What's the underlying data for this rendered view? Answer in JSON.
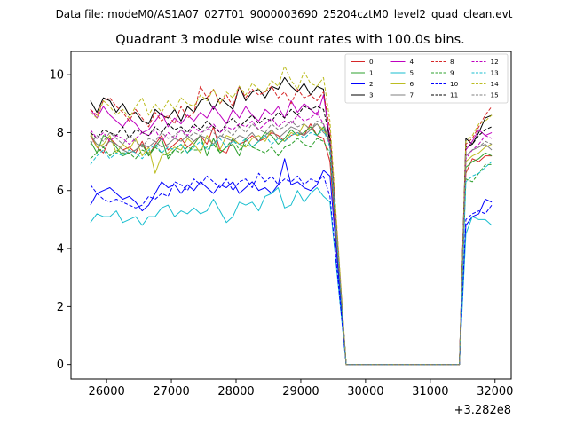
{
  "chart_data": {
    "type": "line",
    "suptitle": "Data file: modeM0/AS1A07_027T01_9000003690_25204cztM0_level2_quad_clean.evt",
    "title": "Quadrant 3 module wise count rates with 100.0s bins.",
    "xlabel": "",
    "ylabel": "",
    "x_offset_label": "+3.282e8",
    "xlim": [
      25450,
      32250
    ],
    "ylim": [
      -0.5,
      10.8
    ],
    "x_ticks": [
      26000,
      27000,
      28000,
      29000,
      30000,
      31000,
      32000
    ],
    "x_tick_labels": [
      "26000",
      "27000",
      "28000",
      "29000",
      "30000",
      "31000",
      "32000"
    ],
    "y_ticks": [
      0,
      2,
      4,
      6,
      8,
      10
    ],
    "y_tick_labels": [
      "0",
      "2",
      "4",
      "6",
      "8",
      "10"
    ],
    "grid": false,
    "legend_position": "upper right",
    "legend_columns": 4,
    "gap": {
      "x_start": 29700,
      "x_end": 31450,
      "value": 0
    },
    "segment1": {
      "x_start": 25750,
      "step": 100
    },
    "segment2": {
      "x": [
        31550,
        31650,
        31750,
        31850,
        31950
      ]
    },
    "series": [
      {
        "name": "0",
        "color": "#d62728",
        "dash": "solid",
        "seg1": [
          7.9,
          7.5,
          7.3,
          7.8,
          7.6,
          7.4,
          7.5,
          7.3,
          7.7,
          7.2,
          7.6,
          7.9,
          7.4,
          7.6,
          7.8,
          7.5,
          7.7,
          7.9,
          7.6,
          8.2,
          7.4,
          7.3,
          7.8,
          7.6,
          7.7,
          7.9,
          7.7,
          7.8,
          8.0,
          7.9,
          7.7,
          7.9,
          8.0,
          7.9,
          8.3,
          7.9,
          7.8,
          7.0
        ],
        "seg2": [
          6.6,
          7.1,
          7.0,
          7.2,
          7.2
        ]
      },
      {
        "name": "1",
        "color": "#2ca02c",
        "dash": "solid",
        "seg1": [
          7.7,
          7.3,
          7.9,
          7.8,
          7.5,
          7.2,
          7.3,
          7.4,
          7.6,
          7.2,
          7.5,
          7.8,
          7.1,
          7.4,
          7.6,
          7.3,
          7.6,
          7.9,
          7.2,
          7.8,
          7.3,
          7.5,
          7.6,
          7.2,
          7.8,
          7.5,
          7.7,
          8.0,
          7.9,
          7.6,
          7.8,
          8.1,
          7.9,
          8.0,
          8.2,
          7.9,
          8.2,
          7.6
        ],
        "seg2": [
          6.8,
          7.0,
          7.1,
          7.3,
          7.2
        ]
      },
      {
        "name": "2",
        "color": "#0000ff",
        "dash": "solid",
        "seg1": [
          5.5,
          5.9,
          6.0,
          6.1,
          5.9,
          5.7,
          5.8,
          5.6,
          5.3,
          5.5,
          5.9,
          6.3,
          6.1,
          6.2,
          5.9,
          6.2,
          6.0,
          6.3,
          6.1,
          5.9,
          6.2,
          6.1,
          6.3,
          5.9,
          6.1,
          6.3,
          6.0,
          6.1,
          5.9,
          6.2,
          7.1,
          6.2,
          6.3,
          6.1,
          6.0,
          6.2,
          6.7,
          6.5
        ],
        "seg2": [
          4.8,
          5.1,
          5.2,
          5.7,
          5.6
        ]
      },
      {
        "name": "3",
        "color": "#000000",
        "dash": "solid",
        "seg1": [
          9.1,
          8.7,
          9.2,
          9.1,
          8.7,
          9.0,
          8.6,
          8.7,
          8.4,
          8.3,
          8.8,
          8.6,
          8.5,
          8.8,
          8.4,
          8.9,
          8.7,
          9.1,
          9.2,
          8.8,
          9.2,
          9.0,
          8.8,
          9.6,
          9.1,
          9.4,
          9.5,
          9.2,
          9.6,
          9.5,
          9.9,
          9.6,
          9.4,
          9.7,
          9.3,
          9.6,
          9.5,
          7.5
        ],
        "seg2": [
          7.8,
          7.6,
          8.0,
          8.5,
          8.6
        ]
      },
      {
        "name": "4",
        "color": "#bf00bf",
        "dash": "solid",
        "seg1": [
          8.8,
          8.5,
          8.9,
          8.6,
          8.4,
          8.2,
          8.5,
          8.3,
          8.0,
          8.1,
          8.4,
          8.7,
          8.2,
          8.5,
          8.3,
          8.6,
          8.4,
          8.7,
          8.5,
          8.9,
          8.6,
          8.3,
          8.8,
          8.5,
          8.9,
          8.6,
          8.4,
          8.8,
          8.6,
          8.9,
          8.5,
          9.1,
          8.7,
          9.0,
          8.8,
          8.6,
          9.3,
          7.8
        ],
        "seg2": [
          7.4,
          7.7,
          8.1,
          7.9,
          8.0
        ]
      },
      {
        "name": "5",
        "color": "#17becf",
        "dash": "solid",
        "seg1": [
          4.9,
          5.2,
          5.1,
          5.1,
          5.3,
          4.9,
          5.0,
          5.1,
          4.8,
          5.1,
          5.1,
          5.4,
          5.5,
          5.1,
          5.3,
          5.2,
          5.4,
          5.2,
          5.3,
          5.7,
          5.3,
          4.9,
          5.1,
          5.6,
          5.5,
          5.6,
          5.3,
          5.8,
          5.9,
          6.1,
          5.4,
          5.5,
          6.0,
          5.6,
          5.9,
          6.1,
          5.8,
          5.6
        ],
        "seg2": [
          4.5,
          5.1,
          5.0,
          5.0,
          4.8
        ]
      },
      {
        "name": "6",
        "color": "#bcbd22",
        "dash": "solid",
        "seg1": [
          8.0,
          7.5,
          7.6,
          7.9,
          7.3,
          7.6,
          7.4,
          7.8,
          7.2,
          7.5,
          6.6,
          7.2,
          7.3,
          7.5,
          7.4,
          7.8,
          7.6,
          7.3,
          7.9,
          7.6,
          7.4,
          7.9,
          7.8,
          7.6,
          7.5,
          7.8,
          7.9,
          7.7,
          8.1,
          7.8,
          7.7,
          8.0,
          7.9,
          8.3,
          8.1,
          8.3,
          8.1,
          7.7
        ],
        "seg2": [
          7.0,
          7.2,
          7.3,
          7.5,
          7.6
        ]
      },
      {
        "name": "7",
        "color": "#7f7f7f",
        "dash": "solid",
        "seg1": [
          7.9,
          7.6,
          7.5,
          7.7,
          7.6,
          7.4,
          7.3,
          7.4,
          7.6,
          7.5,
          7.7,
          7.5,
          7.6,
          7.8,
          7.7,
          7.9,
          7.7,
          7.9,
          7.8,
          7.6,
          7.9,
          7.8,
          7.7,
          7.9,
          7.8,
          8.0,
          7.7,
          7.9,
          8.1,
          7.8,
          8.0,
          8.2,
          8.1,
          7.9,
          8.1,
          8.3,
          8.0,
          7.8
        ],
        "seg2": [
          7.2,
          7.4,
          7.5,
          7.6,
          7.4
        ]
      },
      {
        "name": "8",
        "color": "#d62728",
        "dash": "dashed",
        "seg1": [
          8.8,
          8.6,
          9.1,
          9.2,
          8.9,
          8.7,
          8.4,
          8.8,
          8.5,
          8.2,
          8.7,
          8.4,
          8.6,
          8.3,
          8.9,
          8.5,
          8.7,
          9.6,
          9.2,
          9.5,
          9.0,
          9.3,
          8.9,
          9.6,
          9.2,
          9.5,
          9.3,
          9.4,
          9.6,
          9.2,
          9.4,
          9.0,
          9.5,
          9.2,
          9.3,
          9.1,
          9.4,
          8.1
        ],
        "seg2": [
          7.6,
          7.8,
          8.2,
          8.6,
          8.9
        ]
      },
      {
        "name": "9",
        "color": "#2ca02c",
        "dash": "dashed",
        "seg1": [
          7.1,
          7.3,
          7.5,
          7.2,
          7.4,
          7.3,
          7.3,
          7.1,
          7.4,
          7.3,
          7.5,
          7.3,
          7.2,
          7.4,
          7.3,
          7.5,
          7.4,
          7.4,
          7.5,
          7.6,
          7.3,
          7.5,
          7.8,
          7.4,
          7.6,
          7.5,
          7.4,
          7.3,
          7.5,
          7.2,
          7.5,
          7.6,
          7.8,
          7.6,
          7.5,
          7.8,
          7.7,
          7.3
        ],
        "seg2": [
          6.4,
          6.3,
          6.6,
          6.9,
          6.9
        ]
      },
      {
        "name": "10",
        "color": "#0000ff",
        "dash": "dashed",
        "seg1": [
          6.2,
          5.9,
          5.7,
          5.6,
          5.7,
          5.6,
          5.5,
          5.4,
          5.5,
          5.8,
          5.7,
          5.9,
          5.8,
          6.3,
          6.2,
          6.0,
          6.4,
          6.2,
          6.5,
          6.3,
          6.1,
          6.4,
          6.0,
          6.3,
          6.4,
          6.1,
          6.6,
          6.3,
          6.5,
          6.2,
          6.4,
          6.3,
          6.5,
          6.2,
          6.4,
          6.3,
          6.5,
          5.8
        ],
        "seg2": [
          5.0,
          5.2,
          5.3,
          5.2,
          5.5
        ]
      },
      {
        "name": "11",
        "color": "#000000",
        "dash": "dashed",
        "seg1": [
          8.0,
          7.8,
          8.1,
          8.0,
          7.9,
          8.2,
          7.8,
          8.1,
          8.0,
          7.9,
          8.2,
          8.0,
          8.3,
          8.1,
          8.2,
          8.0,
          8.3,
          8.1,
          8.4,
          8.2,
          8.0,
          8.3,
          8.5,
          8.2,
          8.4,
          8.6,
          8.3,
          8.5,
          8.4,
          8.7,
          8.5,
          8.8,
          8.6,
          8.9,
          8.8,
          8.9,
          8.8,
          7.8
        ],
        "seg2": [
          7.5,
          7.6,
          7.9,
          8.1,
          8.2
        ]
      },
      {
        "name": "12",
        "color": "#bf00bf",
        "dash": "dashed",
        "seg1": [
          8.1,
          7.8,
          8.0,
          7.7,
          7.9,
          7.8,
          7.6,
          7.8,
          8.0,
          7.9,
          8.1,
          7.7,
          8.0,
          7.8,
          8.1,
          7.9,
          8.2,
          8.0,
          8.1,
          8.3,
          8.0,
          8.2,
          8.1,
          8.3,
          8.2,
          8.4,
          8.1,
          8.3,
          8.5,
          8.2,
          8.4,
          8.3,
          8.6,
          8.4,
          8.5,
          8.7,
          8.3,
          7.6
        ],
        "seg2": [
          7.1,
          7.4,
          7.6,
          7.9,
          7.8
        ]
      },
      {
        "name": "13",
        "color": "#17becf",
        "dash": "dashed",
        "seg1": [
          6.9,
          7.2,
          7.4,
          7.1,
          7.3,
          7.2,
          7.4,
          7.3,
          7.1,
          7.4,
          7.6,
          7.3,
          7.5,
          7.4,
          7.6,
          7.3,
          7.5,
          7.7,
          7.4,
          7.6,
          7.8,
          7.5,
          7.7,
          7.6,
          7.8,
          7.5,
          7.7,
          7.9,
          7.6,
          7.8,
          7.7,
          7.9,
          8.0,
          7.8,
          8.0,
          7.9,
          8.1,
          7.5
        ],
        "seg2": [
          6.3,
          6.5,
          6.6,
          6.8,
          7.0
        ]
      },
      {
        "name": "14",
        "color": "#bcbd22",
        "dash": "dashed",
        "seg1": [
          8.7,
          8.5,
          9.1,
          8.9,
          8.6,
          8.8,
          8.5,
          8.9,
          9.2,
          8.6,
          9.0,
          8.7,
          9.1,
          8.8,
          9.2,
          9.0,
          8.9,
          9.3,
          9.1,
          9.5,
          9.0,
          9.4,
          9.2,
          9.6,
          9.3,
          9.7,
          9.5,
          9.4,
          9.8,
          9.6,
          10.3,
          9.8,
          9.5,
          10.1,
          9.7,
          9.6,
          9.9,
          8.4
        ],
        "seg2": [
          7.7,
          7.9,
          8.3,
          8.4,
          8.6
        ]
      },
      {
        "name": "15",
        "color": "#7f7f7f",
        "dash": "dashed",
        "seg1": [
          7.6,
          7.9,
          7.7,
          8.0,
          7.8,
          7.6,
          7.9,
          7.7,
          7.5,
          7.8,
          7.7,
          8.0,
          7.8,
          7.9,
          8.1,
          7.8,
          8.0,
          7.9,
          8.2,
          8.0,
          7.8,
          8.1,
          7.9,
          8.2,
          8.0,
          8.3,
          8.1,
          8.0,
          8.3,
          8.1,
          8.2,
          8.4,
          8.2,
          8.3,
          8.1,
          8.4,
          8.3,
          7.7
        ],
        "seg2": [
          7.2,
          7.4,
          7.5,
          7.7,
          7.6
        ]
      }
    ]
  }
}
